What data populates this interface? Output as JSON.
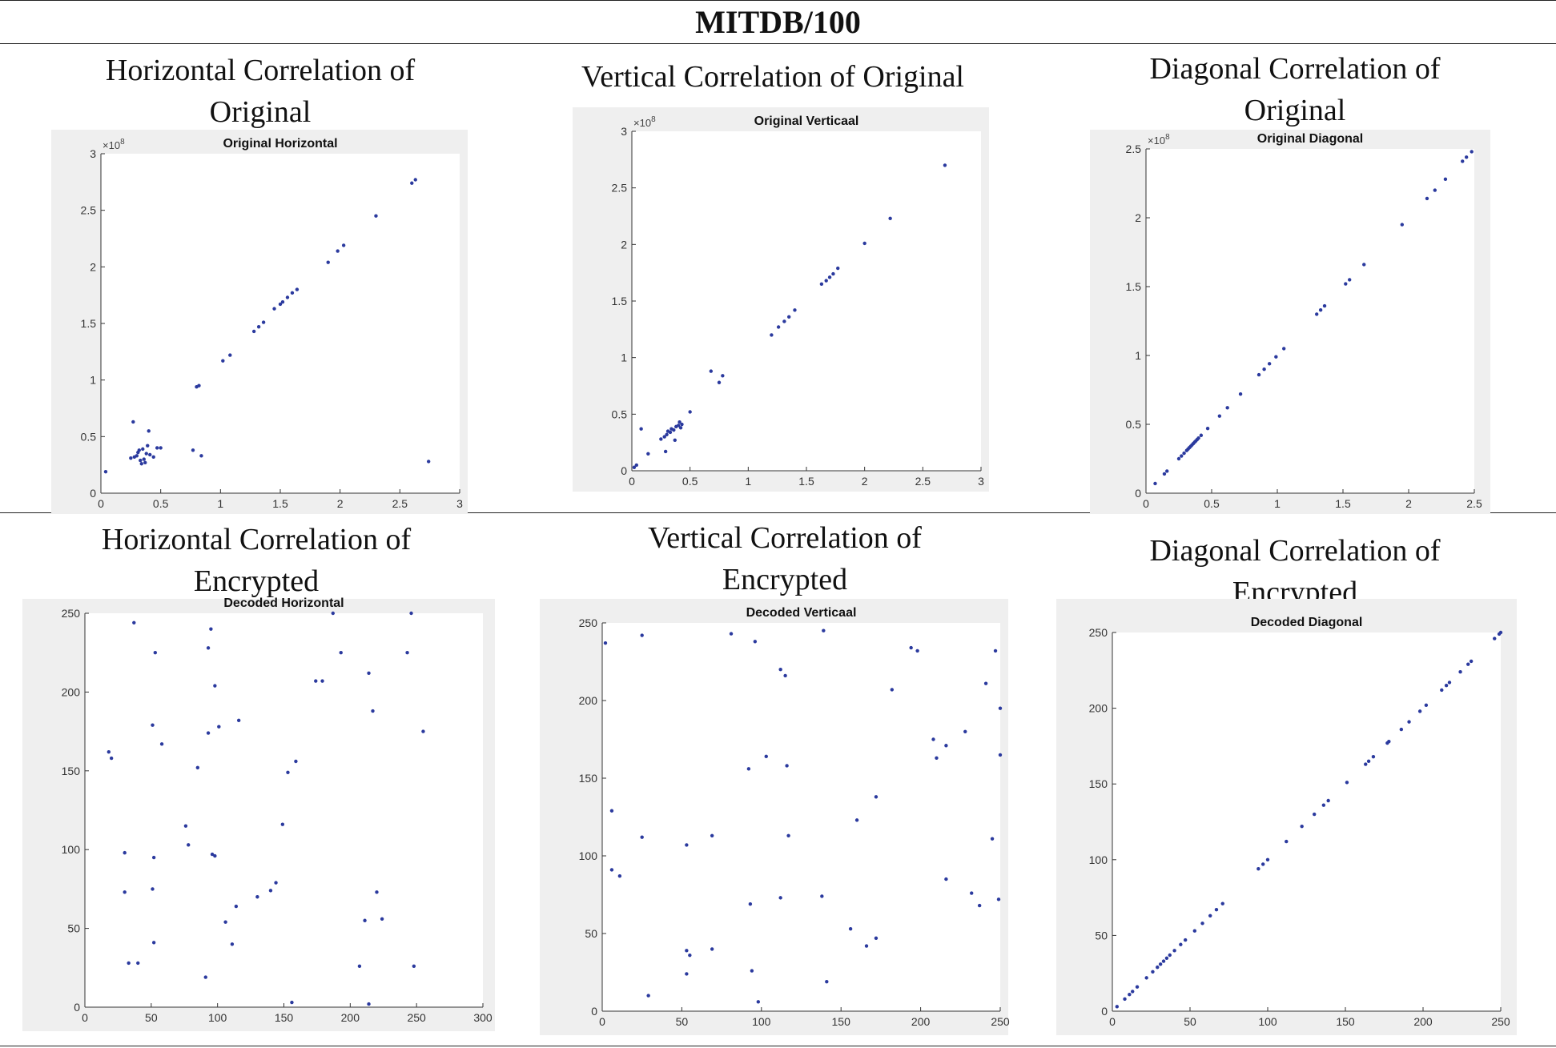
{
  "table": {
    "title": "MITDB/100",
    "row1_titles": [
      "Horizontal Correlation of Original",
      "Vertical Correlation of Original",
      "Diagonal Correlation of Original"
    ],
    "row2_titles": [
      "Horizontal Correlation of Encrypted",
      "Vertical Correlation of Encrypted",
      "Diagonal Correlation of Encrypted"
    ]
  },
  "chart_data": [
    {
      "type": "scatter",
      "title": "Original Horizontal",
      "xlim": [
        0,
        3
      ],
      "ylim": [
        0,
        3
      ],
      "xticks": [
        0,
        0.5,
        1,
        1.5,
        2,
        2.5,
        3
      ],
      "yticks": [
        0,
        0.5,
        1,
        1.5,
        2,
        2.5,
        3
      ],
      "xticklabels": [
        "0",
        "0.5",
        "1",
        "1.5",
        "2",
        "2.5",
        "3"
      ],
      "yticklabels": [
        "0",
        "0.5",
        "1",
        "1.5",
        "2",
        "2.5",
        "3"
      ],
      "exponent_label": "×10",
      "exponent_power": "8",
      "marker_color": "#2b3a9e",
      "points": [
        [
          0.04,
          0.19
        ],
        [
          0.27,
          0.63
        ],
        [
          0.25,
          0.31
        ],
        [
          0.28,
          0.32
        ],
        [
          0.3,
          0.33
        ],
        [
          0.31,
          0.36
        ],
        [
          0.32,
          0.38
        ],
        [
          0.33,
          0.29
        ],
        [
          0.34,
          0.26
        ],
        [
          0.35,
          0.39
        ],
        [
          0.36,
          0.3
        ],
        [
          0.37,
          0.27
        ],
        [
          0.38,
          0.35
        ],
        [
          0.39,
          0.42
        ],
        [
          0.4,
          0.55
        ],
        [
          0.41,
          0.34
        ],
        [
          0.44,
          0.32
        ],
        [
          0.47,
          0.4
        ],
        [
          0.5,
          0.4
        ],
        [
          0.77,
          0.38
        ],
        [
          0.84,
          0.33
        ],
        [
          0.8,
          0.94
        ],
        [
          0.82,
          0.95
        ],
        [
          1.02,
          1.17
        ],
        [
          1.08,
          1.22
        ],
        [
          1.28,
          1.43
        ],
        [
          1.32,
          1.47
        ],
        [
          1.36,
          1.51
        ],
        [
          1.45,
          1.63
        ],
        [
          1.5,
          1.67
        ],
        [
          1.52,
          1.69
        ],
        [
          1.56,
          1.73
        ],
        [
          1.6,
          1.77
        ],
        [
          1.64,
          1.8
        ],
        [
          1.9,
          2.04
        ],
        [
          1.98,
          2.14
        ],
        [
          2.03,
          2.19
        ],
        [
          2.3,
          2.45
        ],
        [
          2.6,
          2.74
        ],
        [
          2.63,
          2.77
        ],
        [
          2.74,
          0.28
        ]
      ]
    },
    {
      "type": "scatter",
      "title": "Original Verticaal",
      "xlim": [
        0,
        3
      ],
      "ylim": [
        0,
        3
      ],
      "xticks": [
        0,
        0.5,
        1,
        1.5,
        2,
        2.5,
        3
      ],
      "yticks": [
        0,
        0.5,
        1,
        1.5,
        2,
        2.5,
        3
      ],
      "xticklabels": [
        "0",
        "0.5",
        "1",
        "1.5",
        "2",
        "2.5",
        "3"
      ],
      "yticklabels": [
        "0",
        "0.5",
        "1",
        "1.5",
        "2",
        "2.5",
        "3"
      ],
      "exponent_label": "×10",
      "exponent_power": "8",
      "marker_color": "#2b3a9e",
      "points": [
        [
          0.02,
          0.03
        ],
        [
          0.04,
          0.05
        ],
        [
          0.08,
          0.37
        ],
        [
          0.14,
          0.15
        ],
        [
          0.25,
          0.28
        ],
        [
          0.28,
          0.3
        ],
        [
          0.29,
          0.17
        ],
        [
          0.3,
          0.32
        ],
        [
          0.31,
          0.35
        ],
        [
          0.33,
          0.34
        ],
        [
          0.34,
          0.37
        ],
        [
          0.36,
          0.36
        ],
        [
          0.37,
          0.27
        ],
        [
          0.38,
          0.39
        ],
        [
          0.4,
          0.4
        ],
        [
          0.41,
          0.43
        ],
        [
          0.42,
          0.38
        ],
        [
          0.43,
          0.41
        ],
        [
          0.5,
          0.52
        ],
        [
          0.68,
          0.88
        ],
        [
          0.75,
          0.78
        ],
        [
          0.78,
          0.84
        ],
        [
          1.2,
          1.2
        ],
        [
          1.26,
          1.27
        ],
        [
          1.31,
          1.32
        ],
        [
          1.35,
          1.36
        ],
        [
          1.4,
          1.42
        ],
        [
          1.63,
          1.65
        ],
        [
          1.67,
          1.68
        ],
        [
          1.7,
          1.71
        ],
        [
          1.73,
          1.74
        ],
        [
          1.77,
          1.79
        ],
        [
          2.0,
          2.01
        ],
        [
          2.22,
          2.23
        ],
        [
          2.69,
          2.7
        ]
      ]
    },
    {
      "type": "scatter",
      "title": "Original Diagonal",
      "xlim": [
        0,
        2.5
      ],
      "ylim": [
        0,
        2.5
      ],
      "xticks": [
        0,
        0.5,
        1,
        1.5,
        2,
        2.5
      ],
      "yticks": [
        0,
        0.5,
        1,
        1.5,
        2,
        2.5
      ],
      "xticklabels": [
        "0",
        "0.5",
        "1",
        "1.5",
        "2",
        "2.5"
      ],
      "yticklabels": [
        "0",
        "0.5",
        "1",
        "1.5",
        "2",
        "2.5"
      ],
      "exponent_label": "×10",
      "exponent_power": "8",
      "marker_color": "#2b3a9e",
      "points": [
        [
          0.07,
          0.07
        ],
        [
          0.14,
          0.14
        ],
        [
          0.16,
          0.16
        ],
        [
          0.25,
          0.25
        ],
        [
          0.27,
          0.27
        ],
        [
          0.29,
          0.29
        ],
        [
          0.31,
          0.31
        ],
        [
          0.32,
          0.32
        ],
        [
          0.33,
          0.33
        ],
        [
          0.34,
          0.34
        ],
        [
          0.35,
          0.35
        ],
        [
          0.36,
          0.36
        ],
        [
          0.37,
          0.37
        ],
        [
          0.38,
          0.38
        ],
        [
          0.39,
          0.39
        ],
        [
          0.4,
          0.4
        ],
        [
          0.42,
          0.42
        ],
        [
          0.47,
          0.47
        ],
        [
          0.56,
          0.56
        ],
        [
          0.62,
          0.62
        ],
        [
          0.72,
          0.72
        ],
        [
          0.86,
          0.86
        ],
        [
          0.9,
          0.9
        ],
        [
          0.94,
          0.94
        ],
        [
          0.99,
          0.99
        ],
        [
          1.05,
          1.05
        ],
        [
          1.3,
          1.3
        ],
        [
          1.33,
          1.33
        ],
        [
          1.36,
          1.36
        ],
        [
          1.52,
          1.52
        ],
        [
          1.55,
          1.55
        ],
        [
          1.66,
          1.66
        ],
        [
          1.95,
          1.95
        ],
        [
          2.14,
          2.14
        ],
        [
          2.2,
          2.2
        ],
        [
          2.28,
          2.28
        ],
        [
          2.41,
          2.41
        ],
        [
          2.44,
          2.44
        ],
        [
          2.48,
          2.48
        ]
      ]
    },
    {
      "type": "scatter",
      "title": "Decoded Horizontal",
      "xlim": [
        0,
        300
      ],
      "ylim": [
        0,
        250
      ],
      "xticks": [
        0,
        50,
        100,
        150,
        200,
        250,
        300
      ],
      "yticks": [
        0,
        50,
        100,
        150,
        200,
        250
      ],
      "xticklabels": [
        "0",
        "50",
        "100",
        "150",
        "200",
        "250",
        "300"
      ],
      "yticklabels": [
        "0",
        "50",
        "100",
        "150",
        "200",
        "250"
      ],
      "marker_color": "#2b3a9e",
      "points": [
        [
          18,
          162
        ],
        [
          20,
          158
        ],
        [
          30,
          98
        ],
        [
          30,
          73
        ],
        [
          33,
          28
        ],
        [
          37,
          244
        ],
        [
          40,
          28
        ],
        [
          51,
          179
        ],
        [
          51,
          75
        ],
        [
          52,
          95
        ],
        [
          52,
          41
        ],
        [
          53,
          225
        ],
        [
          58,
          167
        ],
        [
          76,
          115
        ],
        [
          78,
          103
        ],
        [
          85,
          152
        ],
        [
          91,
          19
        ],
        [
          93,
          228
        ],
        [
          93,
          174
        ],
        [
          95,
          240
        ],
        [
          96,
          97
        ],
        [
          98,
          96
        ],
        [
          98,
          204
        ],
        [
          101,
          178
        ],
        [
          106,
          54
        ],
        [
          111,
          40
        ],
        [
          114,
          64
        ],
        [
          116,
          182
        ],
        [
          130,
          70
        ],
        [
          140,
          74
        ],
        [
          144,
          79
        ],
        [
          149,
          116
        ],
        [
          153,
          149
        ],
        [
          156,
          3
        ],
        [
          159,
          156
        ],
        [
          174,
          207
        ],
        [
          179,
          207
        ],
        [
          187,
          250
        ],
        [
          193,
          225
        ],
        [
          207,
          26
        ],
        [
          211,
          55
        ],
        [
          214,
          212
        ],
        [
          214,
          2
        ],
        [
          217,
          188
        ],
        [
          220,
          73
        ],
        [
          224,
          56
        ],
        [
          243,
          225
        ],
        [
          246,
          250
        ],
        [
          248,
          26
        ],
        [
          255,
          175
        ]
      ]
    },
    {
      "type": "scatter",
      "title": "Decoded Verticaal",
      "xlim": [
        0,
        250
      ],
      "ylim": [
        0,
        250
      ],
      "xticks": [
        0,
        50,
        100,
        150,
        200,
        250
      ],
      "yticks": [
        0,
        50,
        100,
        150,
        200,
        250
      ],
      "xticklabels": [
        "0",
        "50",
        "100",
        "150",
        "200",
        "250"
      ],
      "yticklabels": [
        "0",
        "50",
        "100",
        "150",
        "200",
        "250"
      ],
      "marker_color": "#2b3a9e",
      "points": [
        [
          2,
          237
        ],
        [
          6,
          129
        ],
        [
          6,
          91
        ],
        [
          11,
          87
        ],
        [
          25,
          242
        ],
        [
          25,
          112
        ],
        [
          29,
          10
        ],
        [
          53,
          39
        ],
        [
          53,
          107
        ],
        [
          53,
          24
        ],
        [
          55,
          36
        ],
        [
          69,
          113
        ],
        [
          69,
          40
        ],
        [
          81,
          243
        ],
        [
          92,
          156
        ],
        [
          93,
          69
        ],
        [
          94,
          26
        ],
        [
          96,
          238
        ],
        [
          98,
          6
        ],
        [
          103,
          164
        ],
        [
          112,
          73
        ],
        [
          112,
          220
        ],
        [
          115,
          216
        ],
        [
          116,
          158
        ],
        [
          117,
          113
        ],
        [
          138,
          74
        ],
        [
          139,
          245
        ],
        [
          141,
          19
        ],
        [
          156,
          53
        ],
        [
          160,
          123
        ],
        [
          166,
          42
        ],
        [
          172,
          47
        ],
        [
          172,
          138
        ],
        [
          182,
          207
        ],
        [
          194,
          234
        ],
        [
          198,
          232
        ],
        [
          208,
          175
        ],
        [
          210,
          163
        ],
        [
          216,
          171
        ],
        [
          216,
          85
        ],
        [
          228,
          180
        ],
        [
          232,
          76
        ],
        [
          237,
          68
        ],
        [
          241,
          211
        ],
        [
          245,
          111
        ],
        [
          247,
          232
        ],
        [
          249,
          72
        ],
        [
          250,
          195
        ],
        [
          250,
          165
        ]
      ]
    },
    {
      "type": "scatter",
      "title": "Decoded Diagonal",
      "xlim": [
        0,
        250
      ],
      "ylim": [
        0,
        250
      ],
      "xticks": [
        0,
        50,
        100,
        150,
        200,
        250
      ],
      "yticks": [
        0,
        50,
        100,
        150,
        200,
        250
      ],
      "xticklabels": [
        "0",
        "50",
        "100",
        "150",
        "200",
        "250"
      ],
      "yticklabels": [
        "0",
        "50",
        "100",
        "150",
        "200",
        "250"
      ],
      "marker_color": "#2b3a9e",
      "points": [
        [
          3,
          3
        ],
        [
          8,
          8
        ],
        [
          11,
          11
        ],
        [
          13,
          13
        ],
        [
          16,
          16
        ],
        [
          22,
          22
        ],
        [
          26,
          26
        ],
        [
          29,
          29
        ],
        [
          31,
          31
        ],
        [
          33,
          33
        ],
        [
          35,
          35
        ],
        [
          37,
          37
        ],
        [
          40,
          40
        ],
        [
          44,
          44
        ],
        [
          47,
          47
        ],
        [
          53,
          53
        ],
        [
          58,
          58
        ],
        [
          63,
          63
        ],
        [
          67,
          67
        ],
        [
          71,
          71
        ],
        [
          94,
          94
        ],
        [
          97,
          97
        ],
        [
          100,
          100
        ],
        [
          112,
          112
        ],
        [
          122,
          122
        ],
        [
          130,
          130
        ],
        [
          136,
          136
        ],
        [
          139,
          139
        ],
        [
          151,
          151
        ],
        [
          163,
          163
        ],
        [
          165,
          165
        ],
        [
          168,
          168
        ],
        [
          177,
          177
        ],
        [
          178,
          178
        ],
        [
          186,
          186
        ],
        [
          191,
          191
        ],
        [
          198,
          198
        ],
        [
          202,
          202
        ],
        [
          212,
          212
        ],
        [
          215,
          215
        ],
        [
          217,
          217
        ],
        [
          224,
          224
        ],
        [
          229,
          229
        ],
        [
          231,
          231
        ],
        [
          246,
          246
        ],
        [
          249,
          249
        ],
        [
          250,
          250
        ]
      ]
    }
  ]
}
